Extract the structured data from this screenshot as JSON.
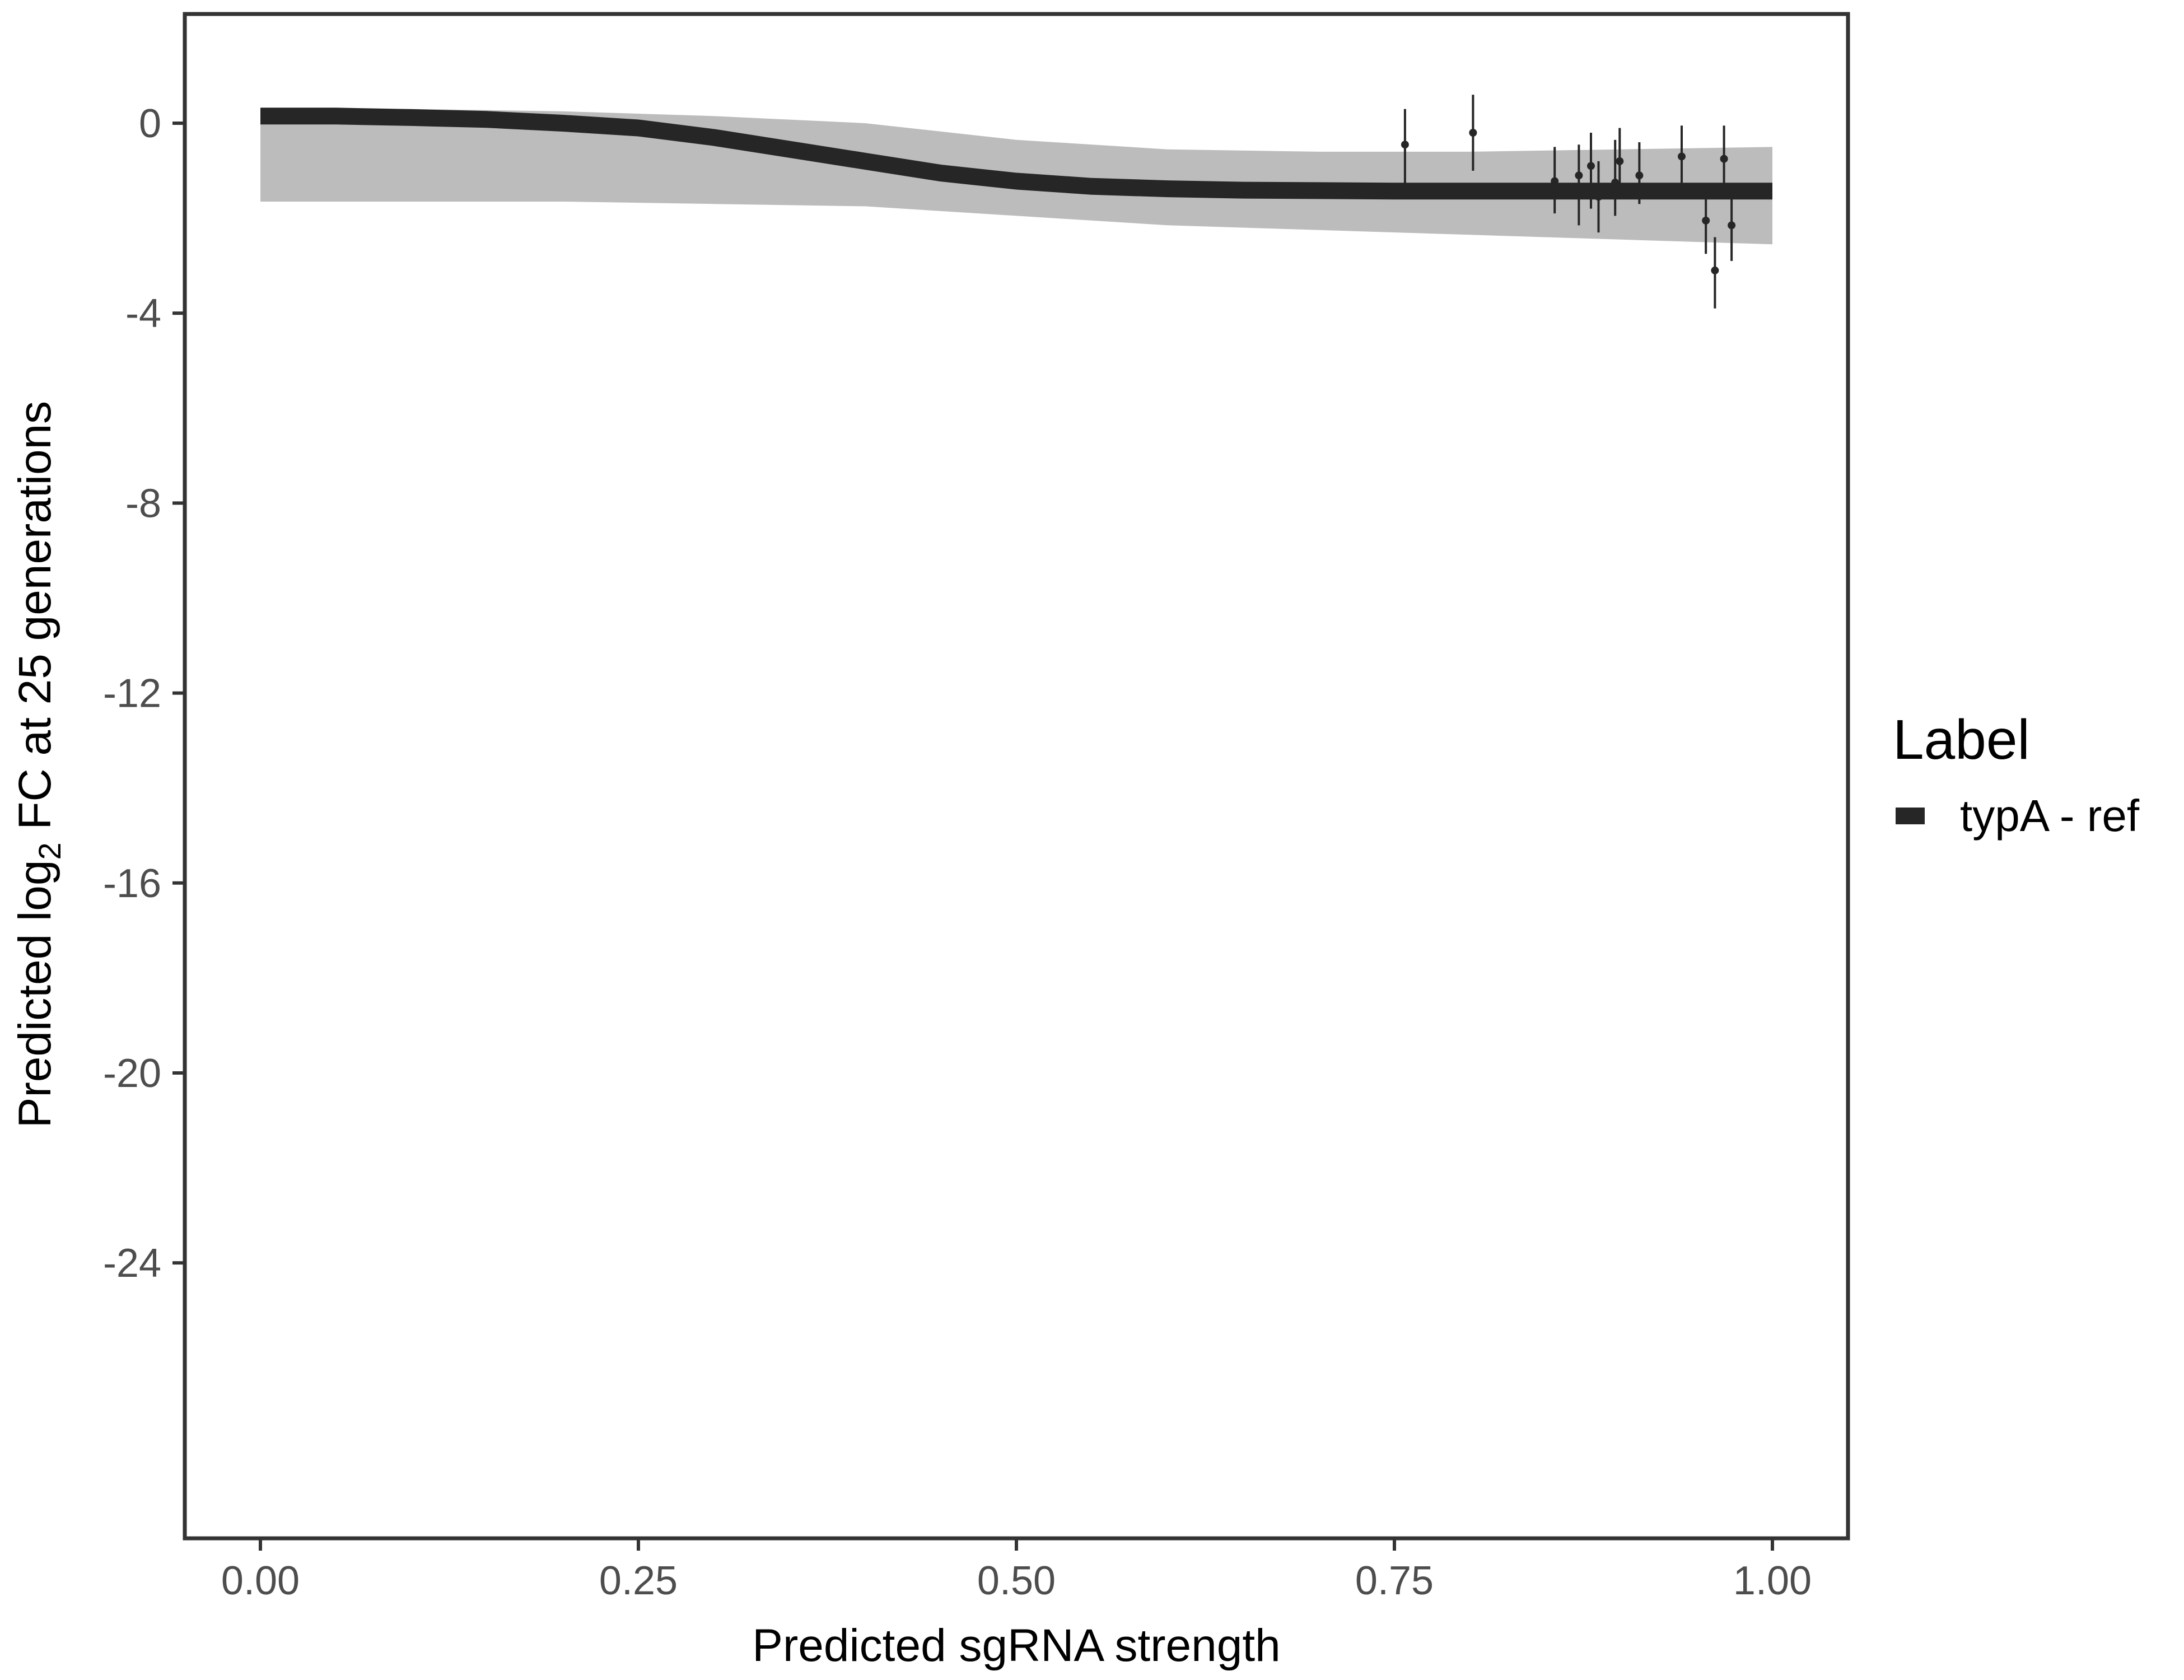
{
  "chart_data": {
    "type": "line",
    "xlabel": "Predicted sgRNA strength",
    "ylabel_parts": {
      "prefix": "Predicted  log",
      "subscript": "2",
      "suffix": " FC at 25 generations"
    },
    "xlim": [
      -0.05,
      1.05
    ],
    "ylim": [
      -29.8,
      2.3
    ],
    "x_ticks": [
      {
        "value": 0.0,
        "label": "0.00"
      },
      {
        "value": 0.25,
        "label": "0.25"
      },
      {
        "value": 0.5,
        "label": "0.50"
      },
      {
        "value": 0.75,
        "label": "0.75"
      },
      {
        "value": 1.0,
        "label": "1.00"
      }
    ],
    "y_ticks": [
      {
        "value": 0,
        "label": "0"
      },
      {
        "value": -4,
        "label": "-4"
      },
      {
        "value": -8,
        "label": "-8"
      },
      {
        "value": -12,
        "label": "-12"
      },
      {
        "value": -16,
        "label": "-16"
      },
      {
        "value": -20,
        "label": "-20"
      },
      {
        "value": -24,
        "label": "-24"
      }
    ],
    "grid": false,
    "legend": {
      "title": "Label",
      "position": "right",
      "entries": [
        {
          "label": "typA - ref",
          "color": "#262626"
        }
      ]
    },
    "fit_curve": {
      "name": "typA - ref",
      "color": "#262626",
      "x": [
        0.0,
        0.05,
        0.1,
        0.15,
        0.2,
        0.25,
        0.3,
        0.35,
        0.4,
        0.45,
        0.5,
        0.55,
        0.6,
        0.65,
        0.7,
        0.75,
        0.8,
        0.85,
        0.9,
        0.95,
        1.0
      ],
      "y": [
        0.15,
        0.15,
        0.12,
        0.08,
        0.0,
        -0.1,
        -0.3,
        -0.55,
        -0.8,
        -1.05,
        -1.22,
        -1.33,
        -1.38,
        -1.41,
        -1.42,
        -1.43,
        -1.43,
        -1.43,
        -1.43,
        -1.43,
        -1.43
      ]
    },
    "band": {
      "color": "#a6a6a6",
      "x": [
        0.0,
        0.1,
        0.2,
        0.3,
        0.4,
        0.5,
        0.6,
        0.7,
        0.8,
        0.9,
        1.0
      ],
      "upper": [
        0.3,
        0.3,
        0.25,
        0.15,
        0.0,
        -0.35,
        -0.55,
        -0.6,
        -0.6,
        -0.55,
        -0.5
      ],
      "lower": [
        -1.65,
        -1.65,
        -1.65,
        -1.7,
        -1.75,
        -1.95,
        -2.15,
        -2.25,
        -2.35,
        -2.45,
        -2.55
      ]
    },
    "points": [
      {
        "x": 0.757,
        "y": -0.45,
        "ymin": -1.35,
        "ymax": 0.3
      },
      {
        "x": 0.802,
        "y": -0.2,
        "ymin": -1.0,
        "ymax": 0.6
      },
      {
        "x": 0.856,
        "y": -1.22,
        "ymin": -1.9,
        "ymax": -0.5
      },
      {
        "x": 0.872,
        "y": -1.1,
        "ymin": -2.15,
        "ymax": -0.45
      },
      {
        "x": 0.88,
        "y": -0.9,
        "ymin": -1.8,
        "ymax": -0.2
      },
      {
        "x": 0.885,
        "y": -1.55,
        "ymin": -2.3,
        "ymax": -0.8
      },
      {
        "x": 0.896,
        "y": -1.25,
        "ymin": -1.95,
        "ymax": -0.35
      },
      {
        "x": 0.899,
        "y": -0.8,
        "ymin": -1.5,
        "ymax": -0.1
      },
      {
        "x": 0.912,
        "y": -1.1,
        "ymin": -1.7,
        "ymax": -0.4
      },
      {
        "x": 0.94,
        "y": -0.7,
        "ymin": -1.35,
        "ymax": -0.05
      },
      {
        "x": 0.956,
        "y": -2.05,
        "ymin": -2.75,
        "ymax": -1.35
      },
      {
        "x": 0.962,
        "y": -3.1,
        "ymin": -3.9,
        "ymax": -2.4
      },
      {
        "x": 0.968,
        "y": -0.75,
        "ymin": -1.45,
        "ymax": -0.05
      },
      {
        "x": 0.973,
        "y": -2.15,
        "ymin": -2.9,
        "ymax": -1.4
      }
    ]
  }
}
